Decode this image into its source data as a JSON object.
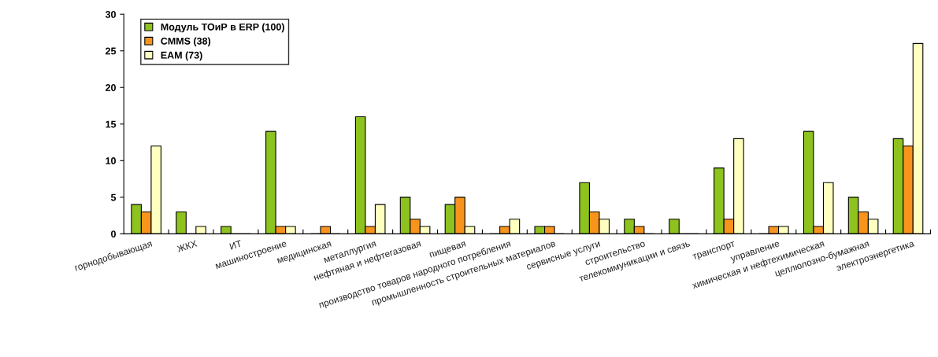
{
  "chart_data": {
    "type": "bar",
    "categories": [
      "горнодобывающая",
      "ЖКХ",
      "ИТ",
      "машиностроение",
      "медицинская",
      "металлургия",
      "нефтяная и нефтегазовая",
      "пищевая",
      "производство товаров народного потребления",
      "промышленность строительных материалов",
      "сервисные услуги",
      "строительство",
      "телекоммуникации и связь",
      "транспорт",
      "управление",
      "химическая и нефтехимическая",
      "целлюлозно-бумажная",
      "электроэнергетика"
    ],
    "series": [
      {
        "name": "Модуль ТОиР в ERP (100)",
        "color": "#8dc21f",
        "values": [
          4,
          3,
          1,
          14,
          0,
          16,
          5,
          4,
          0,
          1,
          7,
          2,
          2,
          9,
          0,
          14,
          5,
          13
        ]
      },
      {
        "name": "CMMS (38)",
        "color": "#f7941d",
        "values": [
          3,
          0,
          0,
          1,
          1,
          1,
          2,
          5,
          1,
          1,
          3,
          1,
          0,
          2,
          1,
          1,
          3,
          12
        ]
      },
      {
        "name": "EAM (73)",
        "color": "#ffffc0",
        "values": [
          12,
          1,
          0,
          1,
          0,
          4,
          1,
          1,
          2,
          0,
          2,
          0,
          0,
          13,
          1,
          7,
          2,
          26
        ]
      }
    ],
    "ylim": [
      0,
      30
    ],
    "yticks": [
      0,
      5,
      10,
      15,
      20,
      25,
      30
    ],
    "grid": false,
    "legend": "top left"
  }
}
